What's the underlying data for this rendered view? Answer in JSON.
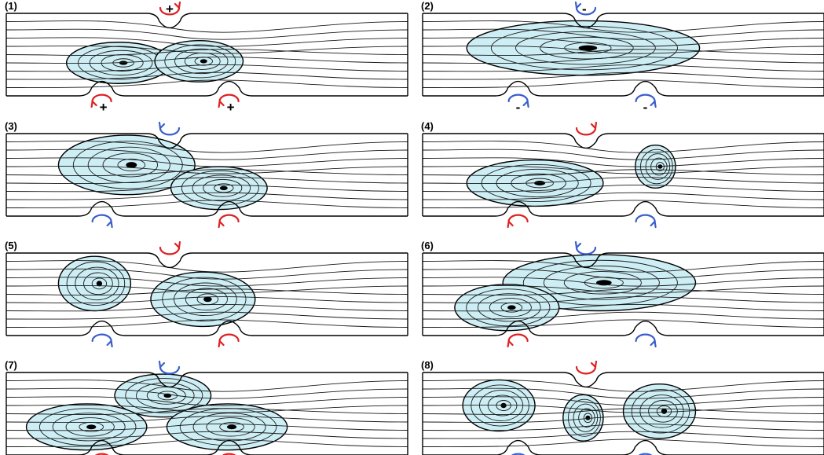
{
  "colors": {
    "clockwise": "#dd2222",
    "counterclockwise": "#3a5fcc",
    "recirculation_fill": "#cdeef4",
    "streamline": "#1a1a1a",
    "wall": "#000000"
  },
  "panels": [
    {
      "label": "(1)",
      "cylinders": [
        {
          "position": "top",
          "rotation": "cw",
          "sign": "+"
        },
        {
          "position": "bottom-left",
          "rotation": "cw",
          "sign": "+"
        },
        {
          "position": "bottom-right",
          "rotation": "cw",
          "sign": "+"
        }
      ]
    },
    {
      "label": "(2)",
      "cylinders": [
        {
          "position": "top",
          "rotation": "ccw",
          "sign": "-"
        },
        {
          "position": "bottom-left",
          "rotation": "ccw",
          "sign": "-"
        },
        {
          "position": "bottom-right",
          "rotation": "ccw",
          "sign": "-"
        }
      ]
    },
    {
      "label": "(3)",
      "cylinders": [
        {
          "position": "top",
          "rotation": "ccw",
          "sign": ""
        },
        {
          "position": "bottom-left",
          "rotation": "ccw",
          "sign": ""
        },
        {
          "position": "bottom-right",
          "rotation": "cw",
          "sign": ""
        }
      ]
    },
    {
      "label": "(4)",
      "cylinders": [
        {
          "position": "top",
          "rotation": "cw",
          "sign": ""
        },
        {
          "position": "bottom-left",
          "rotation": "cw",
          "sign": ""
        },
        {
          "position": "bottom-right",
          "rotation": "ccw",
          "sign": ""
        }
      ]
    },
    {
      "label": "(5)",
      "cylinders": [
        {
          "position": "top",
          "rotation": "cw",
          "sign": ""
        },
        {
          "position": "bottom-left",
          "rotation": "ccw",
          "sign": ""
        },
        {
          "position": "bottom-right",
          "rotation": "cw",
          "sign": ""
        }
      ]
    },
    {
      "label": "(6)",
      "cylinders": [
        {
          "position": "top",
          "rotation": "ccw",
          "sign": ""
        },
        {
          "position": "bottom-left",
          "rotation": "cw",
          "sign": ""
        },
        {
          "position": "bottom-right",
          "rotation": "ccw",
          "sign": ""
        }
      ]
    },
    {
      "label": "(7)",
      "cylinders": [
        {
          "position": "top",
          "rotation": "ccw",
          "sign": ""
        },
        {
          "position": "bottom-left",
          "rotation": "cw",
          "sign": ""
        },
        {
          "position": "bottom-right",
          "rotation": "cw",
          "sign": ""
        }
      ]
    },
    {
      "label": "(8)",
      "cylinders": [
        {
          "position": "top",
          "rotation": "cw",
          "sign": ""
        },
        {
          "position": "bottom-left",
          "rotation": "ccw",
          "sign": ""
        },
        {
          "position": "bottom-right",
          "rotation": "ccw",
          "sign": ""
        }
      ]
    }
  ]
}
